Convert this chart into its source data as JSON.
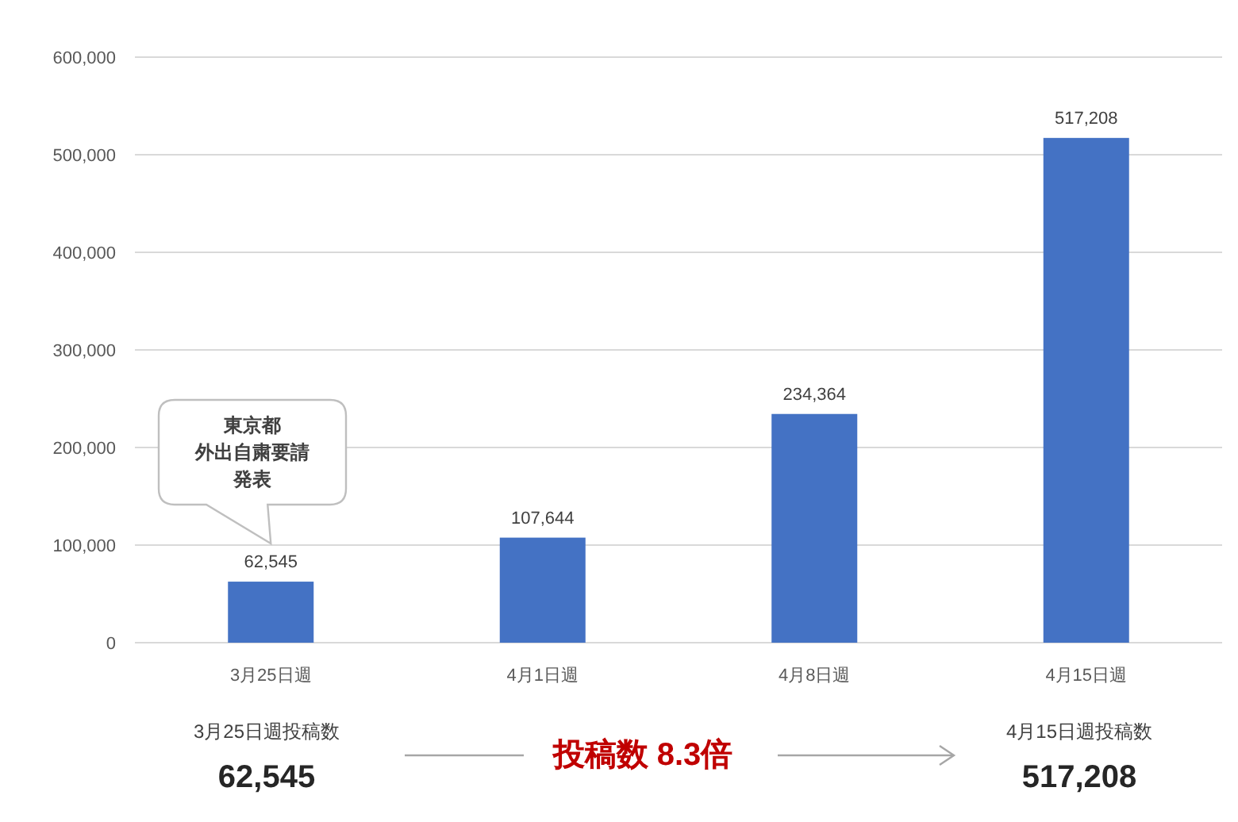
{
  "chart_data": {
    "type": "bar",
    "categories": [
      "3月25日週",
      "4月1日週",
      "4月8日週",
      "4月15日週"
    ],
    "values": [
      62545,
      107644,
      234364,
      517208
    ],
    "color": "#4472c4",
    "value_labels": [
      "62,545",
      "107,644",
      "234,364",
      "517,208"
    ],
    "ylim": [
      0,
      600000
    ],
    "yticks": [
      {
        "value": 0,
        "label": "0"
      },
      {
        "value": 100000,
        "label": "100,000"
      },
      {
        "value": 200000,
        "label": "200,000"
      },
      {
        "value": 300000,
        "label": "300,000"
      },
      {
        "value": 400000,
        "label": "400,000"
      },
      {
        "value": 500000,
        "label": "500,000"
      },
      {
        "value": 600000,
        "label": "600,000"
      }
    ],
    "grid": "y",
    "annotations": [
      "東京都外出自粛要請発表",
      "3月25日週投稿数",
      "62,545",
      "投稿数 8.3倍",
      "4月15日週投稿数",
      "517,208"
    ]
  }
}
